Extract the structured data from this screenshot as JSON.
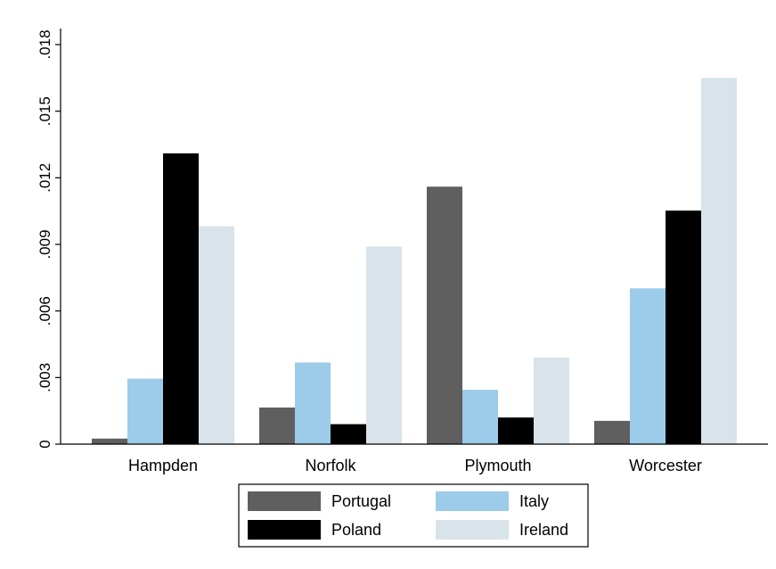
{
  "chart_data": {
    "type": "bar",
    "title": "",
    "xlabel": "",
    "ylabel": "",
    "categories": [
      "Hampden",
      "Norfolk",
      "Plymouth",
      "Worcester"
    ],
    "series": [
      {
        "name": "Portugal",
        "color": "#5f5f5f",
        "values": [
          0.00025,
          0.00165,
          0.0116,
          0.00105
        ]
      },
      {
        "name": "Italy",
        "color": "#9dcbea",
        "values": [
          0.00295,
          0.00368,
          0.00245,
          0.00702
        ]
      },
      {
        "name": "Poland",
        "color": "#000000",
        "values": [
          0.0131,
          0.0009,
          0.0012,
          0.01052
        ]
      },
      {
        "name": "Ireland",
        "color": "#d8e4ea",
        "values": [
          0.00982,
          0.0089,
          0.0039,
          0.0165
        ]
      }
    ],
    "ylim": [
      0,
      0.018
    ],
    "yticks": [
      0,
      0.003,
      0.006,
      0.009,
      0.012,
      0.015,
      0.018
    ],
    "ytick_labels": [
      "0",
      ".003",
      ".006",
      ".009",
      ".012",
      ".015",
      ".018"
    ],
    "grid": false,
    "legend": {
      "position": "bottom",
      "columns": 2,
      "order": [
        "Portugal",
        "Italy",
        "Poland",
        "Ireland"
      ]
    }
  }
}
